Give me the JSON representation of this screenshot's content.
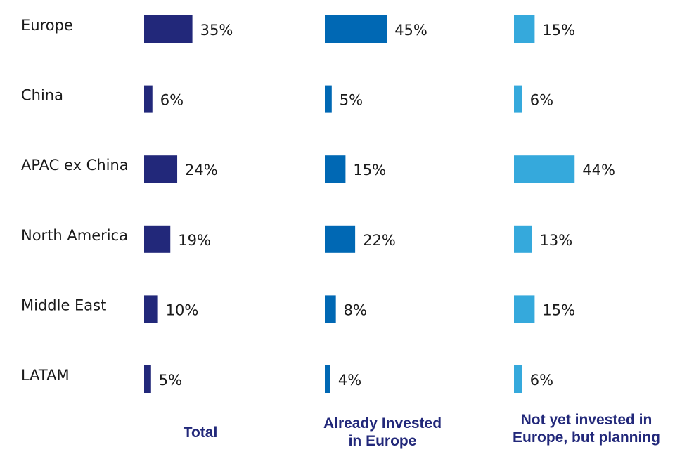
{
  "chart_data": {
    "type": "bar",
    "orientation": "horizontal",
    "categories": [
      "Europe",
      "China",
      "APAC ex China",
      "North America",
      "Middle East",
      "LATAM"
    ],
    "series": [
      {
        "name": "Total",
        "name_lines": [
          "Total"
        ],
        "values": [
          35,
          6,
          24,
          19,
          10,
          5
        ],
        "labels": [
          "35%",
          "6%",
          "24%",
          "19%",
          "10%",
          "5%"
        ],
        "color": "#22287a"
      },
      {
        "name": "Already Invested in Europe",
        "name_lines": [
          "Already Invested",
          "in Europe"
        ],
        "values": [
          45,
          5,
          15,
          22,
          8,
          4
        ],
        "labels": [
          "45%",
          "5%",
          "15%",
          "22%",
          "8%",
          "4%"
        ],
        "color": "#0068b4"
      },
      {
        "name": "Not yet invested in Europe, but planning",
        "name_lines": [
          "Not yet invested in",
          "Europe, but planning"
        ],
        "values": [
          15,
          6,
          44,
          13,
          15,
          6
        ],
        "labels": [
          "15%",
          "6%",
          "44%",
          "13%",
          "15%",
          "6%"
        ],
        "color": "#35a9dc"
      }
    ],
    "header_color": "#22287a",
    "legend": "bottom",
    "grid": false,
    "unit": "%"
  }
}
